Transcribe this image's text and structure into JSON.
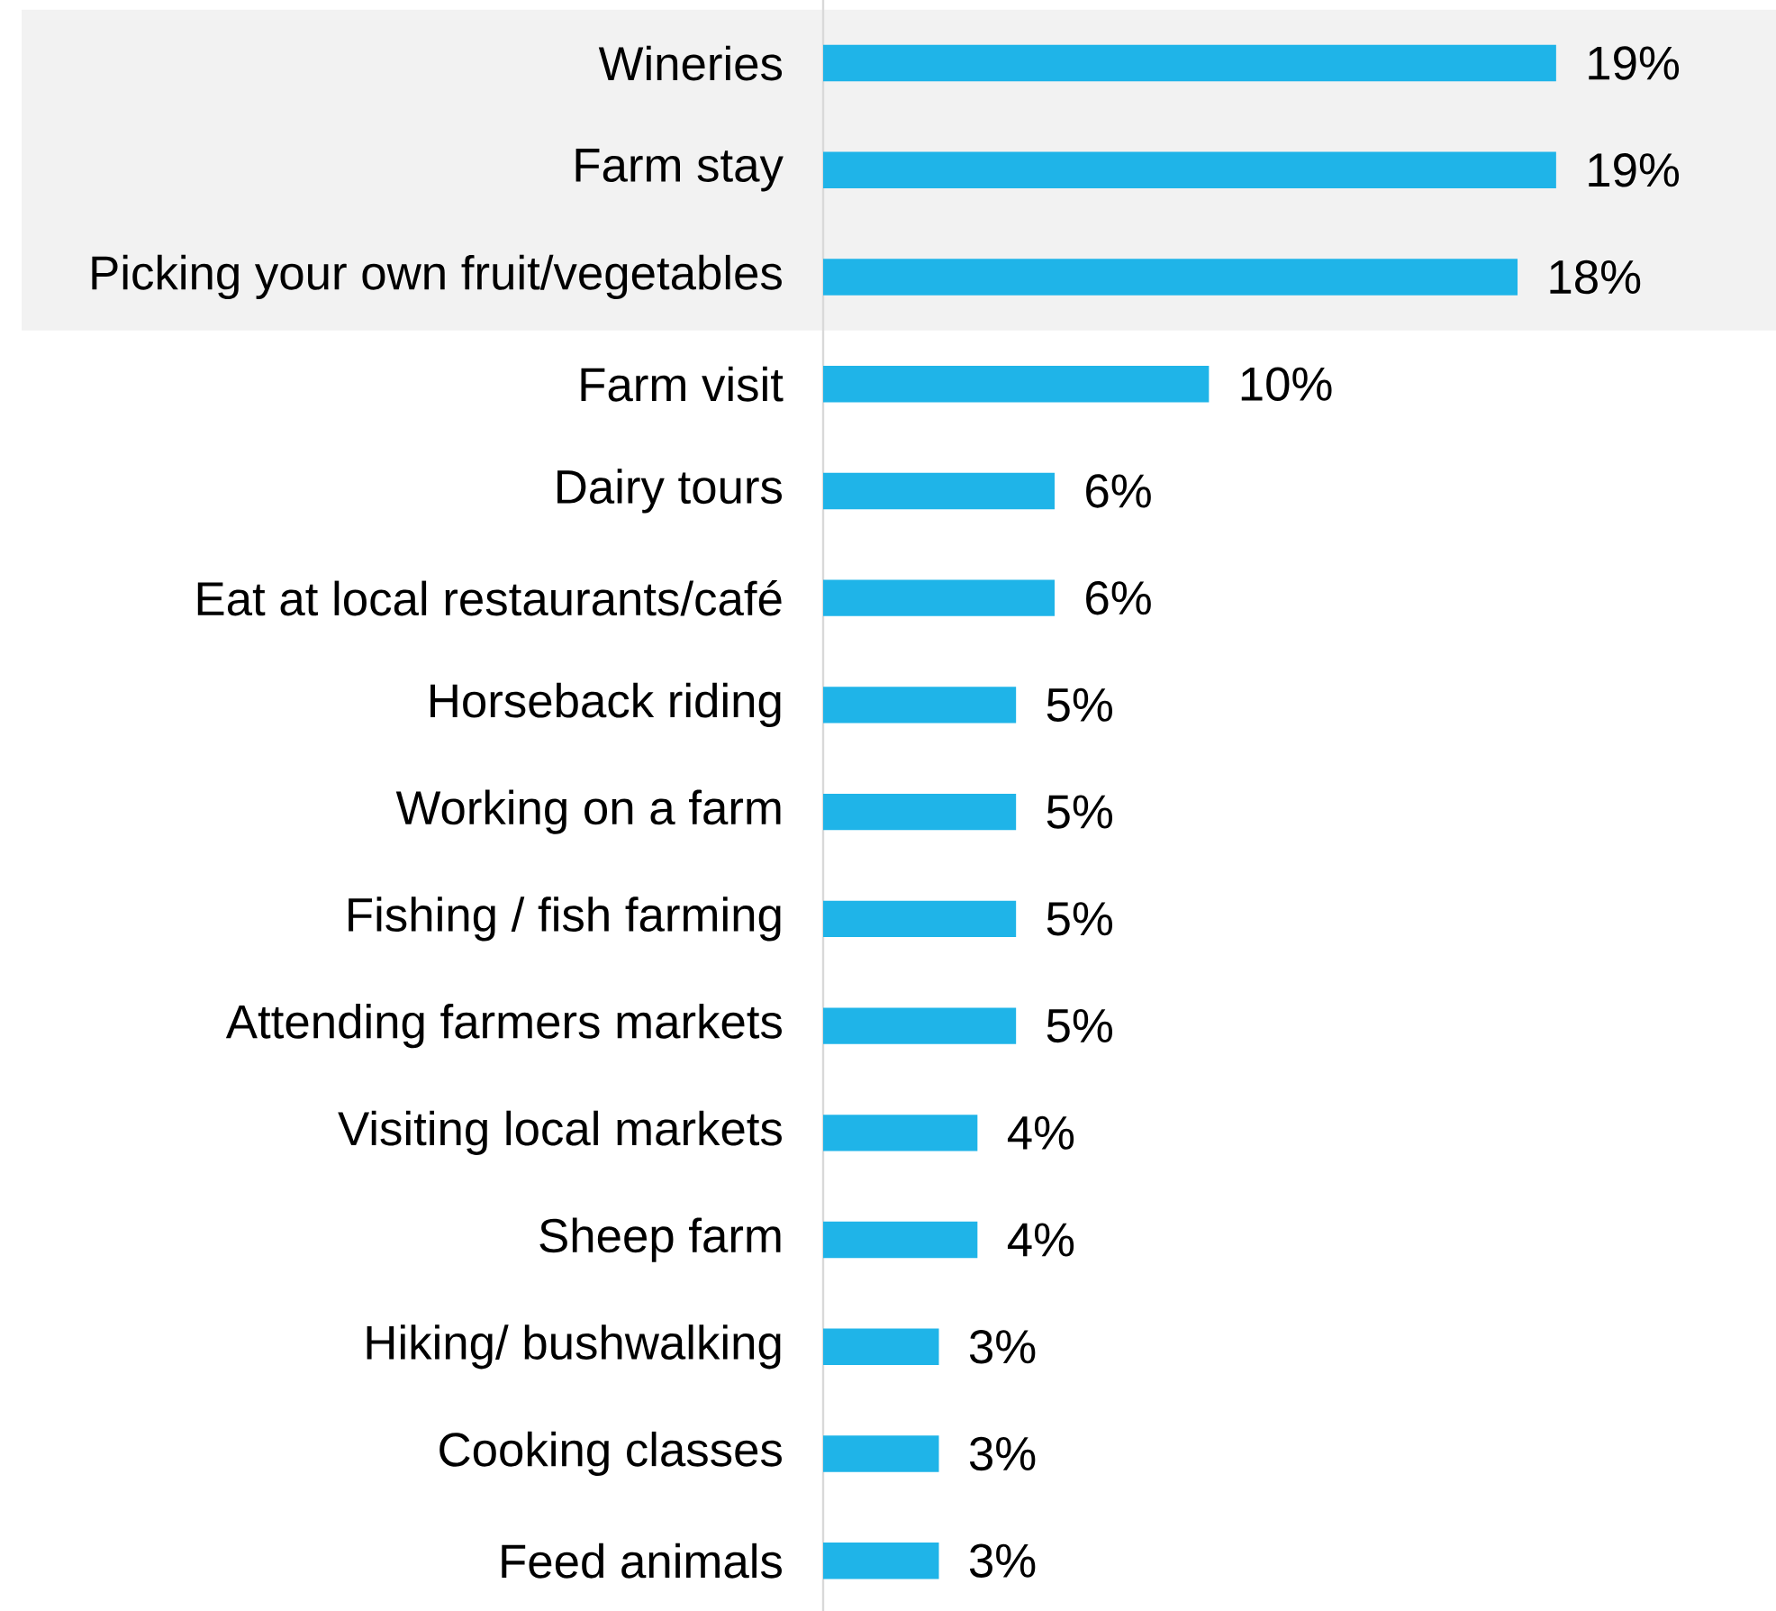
{
  "chart_data": {
    "type": "bar",
    "orientation": "horizontal",
    "categories": [
      "Wineries",
      "Farm stay",
      "Picking your own fruit/vegetables",
      "Farm visit",
      "Dairy tours",
      "Eat at local restaurants/café",
      "Horseback riding",
      "Working on a farm",
      "Fishing / fish farming",
      "Attending farmers markets",
      "Visiting local markets",
      "Sheep farm",
      "Hiking/ bushwalking",
      "Cooking classes",
      "Feed animals"
    ],
    "values": [
      19,
      19,
      18,
      10,
      6,
      6,
      5,
      5,
      5,
      5,
      4,
      4,
      3,
      3,
      3
    ],
    "value_labels": [
      "19%",
      "19%",
      "18%",
      "10%",
      "6%",
      "6%",
      "5%",
      "5%",
      "5%",
      "5%",
      "4%",
      "4%",
      "3%",
      "3%",
      "3%"
    ],
    "color": "#1fb4e8",
    "bands": [
      {
        "axis": "y",
        "from": "Wineries",
        "to": "Picking your own fruit/vegetables",
        "color": "#f2f2f2"
      }
    ],
    "grid": false
  }
}
